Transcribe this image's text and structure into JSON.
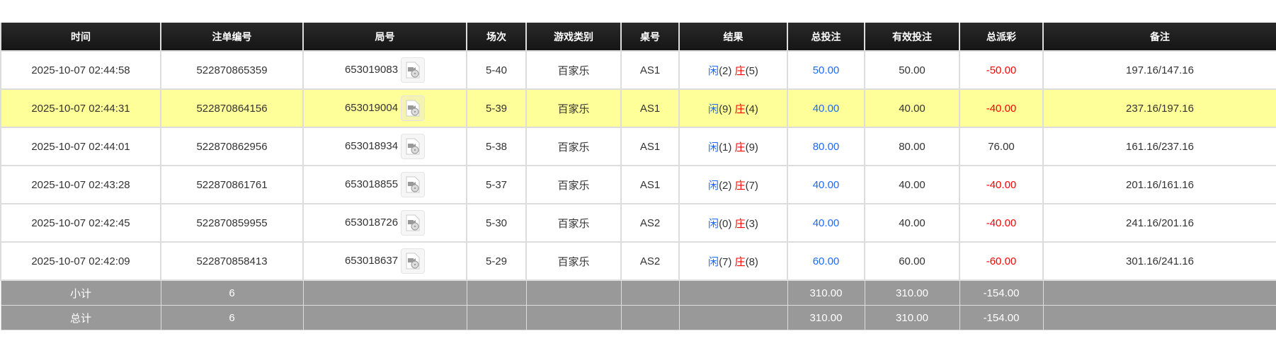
{
  "headers": [
    "时间",
    "注单编号",
    "局号",
    "场次",
    "游戏类别",
    "桌号",
    "结果",
    "总投注",
    "有效投注",
    "总派彩",
    "备注"
  ],
  "rows": [
    {
      "time": "2025-10-07 02:44:58",
      "bet_id": "522870865359",
      "round": "653019083",
      "session": "5-40",
      "game": "百家乐",
      "table": "AS1",
      "player_label": "闲",
      "player": "(2)",
      "banker_label": "庄",
      "banker": "(5)",
      "total_bet": "50.00",
      "valid_bet": "50.00",
      "payout": "-50.00",
      "note": "197.16/147.16",
      "highlight": false
    },
    {
      "time": "2025-10-07 02:44:31",
      "bet_id": "522870864156",
      "round": "653019004",
      "session": "5-39",
      "game": "百家乐",
      "table": "AS1",
      "player_label": "闲",
      "player": "(9)",
      "banker_label": "庄",
      "banker": "(4)",
      "total_bet": "40.00",
      "valid_bet": "40.00",
      "payout": "-40.00",
      "note": "237.16/197.16",
      "highlight": true
    },
    {
      "time": "2025-10-07 02:44:01",
      "bet_id": "522870862956",
      "round": "653018934",
      "session": "5-38",
      "game": "百家乐",
      "table": "AS1",
      "player_label": "闲",
      "player": "(1)",
      "banker_label": "庄",
      "banker": "(9)",
      "total_bet": "80.00",
      "valid_bet": "80.00",
      "payout": "76.00",
      "note": "161.16/237.16",
      "highlight": false
    },
    {
      "time": "2025-10-07 02:43:28",
      "bet_id": "522870861761",
      "round": "653018855",
      "session": "5-37",
      "game": "百家乐",
      "table": "AS1",
      "player_label": "闲",
      "player": "(2)",
      "banker_label": "庄",
      "banker": "(7)",
      "total_bet": "40.00",
      "valid_bet": "40.00",
      "payout": "-40.00",
      "note": "201.16/161.16",
      "highlight": false
    },
    {
      "time": "2025-10-07 02:42:45",
      "bet_id": "522870859955",
      "round": "653018726",
      "session": "5-30",
      "game": "百家乐",
      "table": "AS2",
      "player_label": "闲",
      "player": "(0)",
      "banker_label": "庄",
      "banker": "(3)",
      "total_bet": "40.00",
      "valid_bet": "40.00",
      "payout": "-40.00",
      "note": "241.16/201.16",
      "highlight": false
    },
    {
      "time": "2025-10-07 02:42:09",
      "bet_id": "522870858413",
      "round": "653018637",
      "session": "5-29",
      "game": "百家乐",
      "table": "AS2",
      "player_label": "闲",
      "player": "(7)",
      "banker_label": "庄",
      "banker": "(8)",
      "total_bet": "60.00",
      "valid_bet": "60.00",
      "payout": "-60.00",
      "note": "301.16/241.16",
      "highlight": false
    }
  ],
  "subtotal": {
    "label": "小计",
    "count": "6",
    "total_bet": "310.00",
    "valid_bet": "310.00",
    "payout": "-154.00"
  },
  "grandtotal": {
    "label": "总计",
    "count": "6",
    "total_bet": "310.00",
    "valid_bet": "310.00",
    "payout": "-154.00"
  },
  "colors": {
    "header_bg": "#1b1b1b",
    "highlight_row": "#ffff99",
    "summary_bg": "#999999",
    "player": "#1a6aff",
    "banker": "#ff0000"
  },
  "icons": {
    "round_video": "video-replay-icon"
  }
}
